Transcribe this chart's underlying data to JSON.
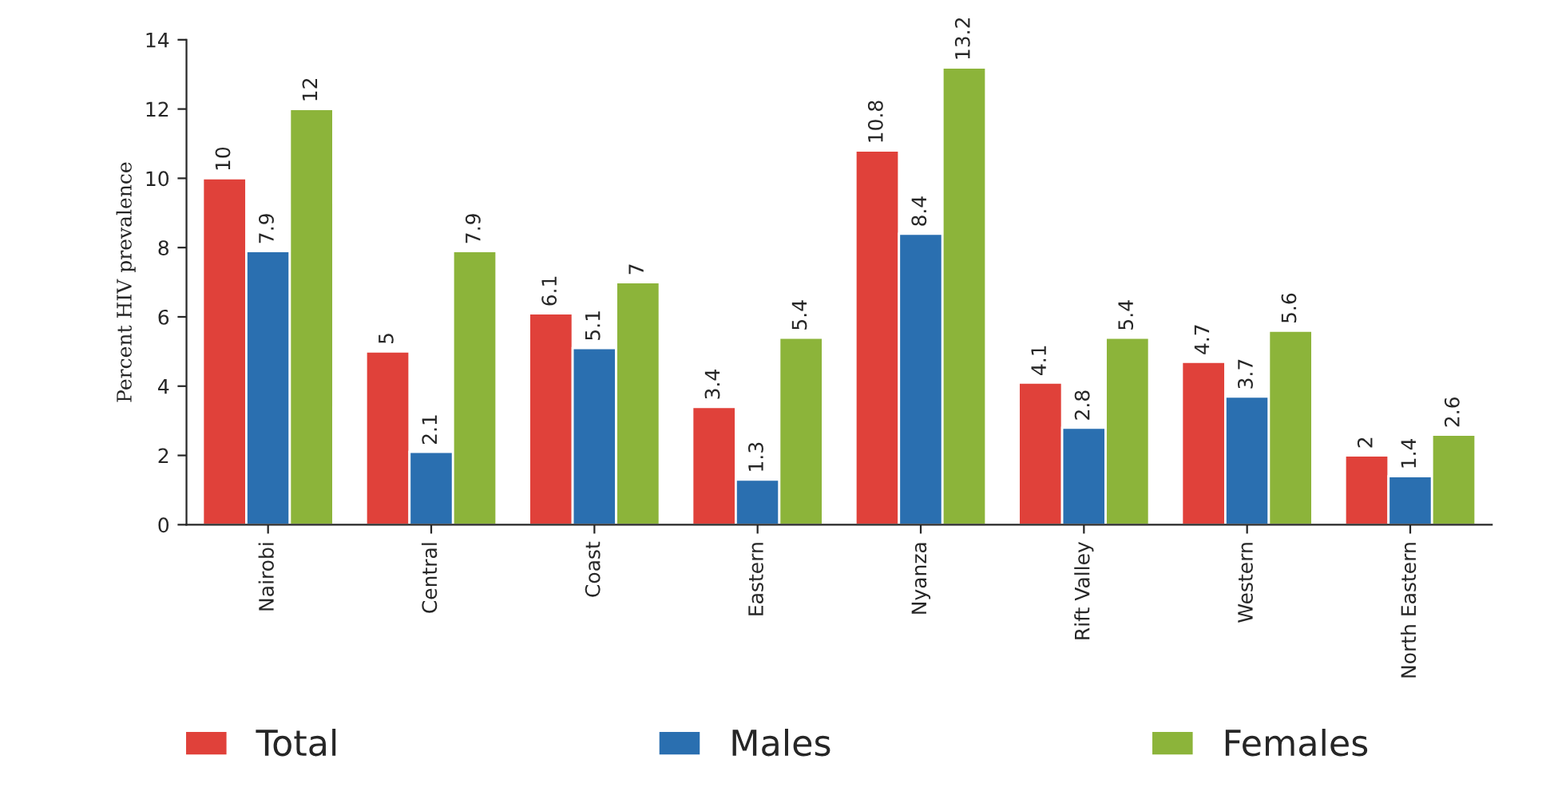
{
  "chart_data": {
    "type": "bar",
    "ylabel": "Percent HIV prevalence",
    "categories": [
      "Nairobi",
      "Central",
      "Coast",
      "Eastern",
      "Nyanza",
      "Rift Valley",
      "Western",
      "North Eastern"
    ],
    "series": [
      {
        "name": "Total",
        "color": "#e0413a",
        "values": [
          10,
          5,
          6.1,
          3.4,
          10.8,
          4.1,
          4.7,
          2
        ]
      },
      {
        "name": "Males",
        "color": "#2a6fb0",
        "values": [
          7.9,
          2.1,
          5.1,
          1.3,
          8.4,
          2.8,
          3.7,
          1.4
        ]
      },
      {
        "name": "Females",
        "color": "#8cb43a",
        "values": [
          12,
          7.9,
          7,
          5.4,
          13.2,
          5.4,
          5.6,
          2.6
        ]
      }
    ],
    "ylim": [
      0,
      14
    ],
    "yticks": [
      0,
      2,
      4,
      6,
      8,
      10,
      12,
      14
    ],
    "grid": false,
    "data_labels": true,
    "legend": "bottom"
  }
}
